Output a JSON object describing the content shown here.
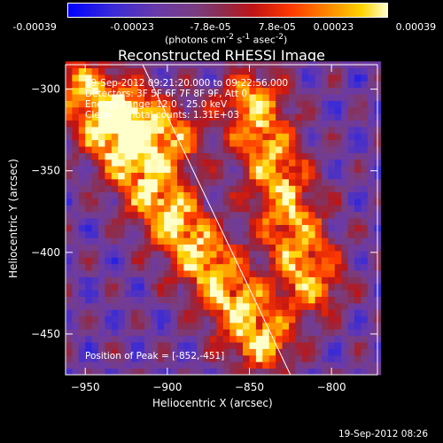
{
  "colorbar": {
    "ticks": [
      "-0.00039",
      "-0.00023",
      "-7.8e-05",
      "7.8e-05",
      "0.00023",
      "0.00039"
    ],
    "unit_main": "(photons cm",
    "unit_exp1": "-2",
    "unit_mid": " s",
    "unit_exp2": "-1",
    "unit_tail": " asec",
    "unit_exp3": "-2",
    "unit_close": ")",
    "range": [
      -0.00039,
      0.00039
    ]
  },
  "chart_data": {
    "type": "heatmap",
    "title": "Reconstructed RHESSI Image",
    "xlabel": "Heliocentric X (arcsec)",
    "ylabel": "Heliocentric Y (arcsec)",
    "xlim": [
      -962,
      -772
    ],
    "ylim": [
      -475,
      -285
    ],
    "x_ticks": [
      -950,
      -900,
      -850,
      -800
    ],
    "y_ticks": [
      -450,
      -400,
      -350,
      -300
    ],
    "x_tick_labels": [
      "−950",
      "−900",
      "−850",
      "−800"
    ],
    "y_tick_labels": [
      "−450",
      "−400",
      "−350",
      "−300"
    ],
    "limb_line": [
      [
        -915,
        -285
      ],
      [
        -825,
        -475
      ]
    ],
    "peak": [
      -852,
      -451
    ],
    "bright_ridges": [
      {
        "from": [
          -935,
          -330
        ],
        "to": [
          -845,
          -455
        ],
        "strength": 1.0
      },
      {
        "from": [
          -850,
          -310
        ],
        "to": [
          -815,
          -420
        ],
        "strength": 0.9
      },
      {
        "from": [
          -955,
          -300
        ],
        "to": [
          -900,
          -330
        ],
        "strength": 0.8
      }
    ]
  },
  "info": {
    "time_range": "19-Sep-2012 09:21:20.000 to 09:22:56.000",
    "detectors": "Detectors: 3F 5F 6F 7F 8F 9F, Att 0",
    "energy": "Energy Range: 12.0 - 25.0 keV",
    "method": "Clean",
    "counts": "Total counts: 1.31E+03",
    "peak_label": "Position of Peak = [-852,-451]"
  },
  "footer": {
    "timestamp": "19-Sep-2012 08:26"
  }
}
